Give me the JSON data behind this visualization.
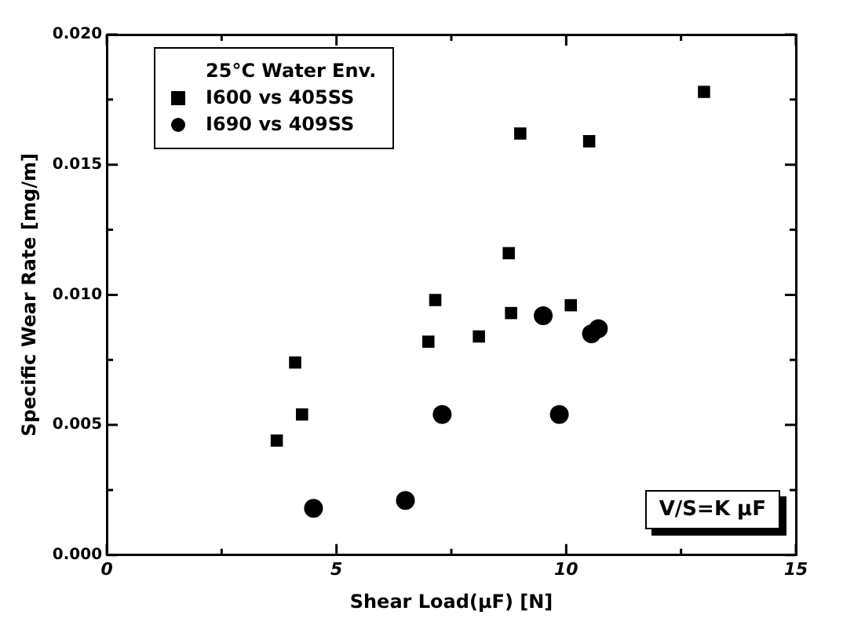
{
  "chart_data": {
    "type": "scatter",
    "xlabel": "Shear Load(μF) [N]",
    "ylabel": "Specific Wear Rate [mg/m]",
    "legend_title": "25°C Water Env.",
    "legend": "top left",
    "grid": false,
    "xlim": [
      0,
      15
    ],
    "xticks": [
      0,
      5,
      10,
      15
    ],
    "ylim": [
      0,
      0.02
    ],
    "yticks": [
      {
        "value": 0,
        "label": "0.000"
      },
      {
        "value": 0.005,
        "label": "0.005"
      },
      {
        "value": 0.01,
        "label": "0.010"
      },
      {
        "value": 0.015,
        "label": "0.015"
      },
      {
        "value": 0.02,
        "label": "0.020"
      }
    ],
    "annotations": [
      "V/S=K μF"
    ],
    "series": [
      {
        "name": "I600 vs 405SS",
        "color": "#000000",
        "marker": "square",
        "x": [
          3.7,
          4.1,
          4.25,
          7.0,
          7.15,
          8.1,
          8.75,
          8.8,
          9.0,
          10.1,
          10.5,
          13.0
        ],
        "values": [
          0.0044,
          0.0074,
          0.0054,
          0.0082,
          0.0098,
          0.0084,
          0.0116,
          0.0093,
          0.0162,
          0.0096,
          0.0159,
          0.0178
        ]
      },
      {
        "name": "I690 vs 409SS",
        "color": "#000000",
        "marker": "circle",
        "x": [
          4.5,
          6.5,
          7.3,
          9.5,
          9.85,
          10.55,
          10.7
        ],
        "values": [
          0.0018,
          0.0021,
          0.0054,
          0.0092,
          0.0054,
          0.0085,
          0.0087
        ]
      }
    ]
  }
}
